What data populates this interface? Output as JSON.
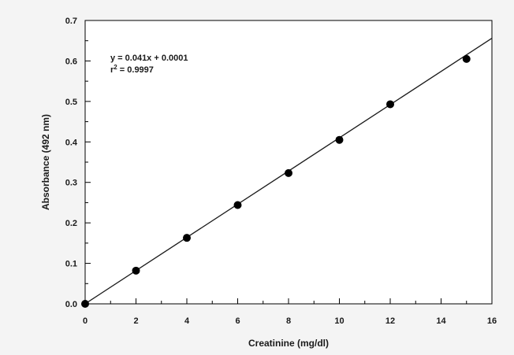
{
  "chart_data": {
    "type": "scatter",
    "title": "",
    "xlabel": "Creatinine (mg/dl)",
    "ylabel": "Absorbance (492 nm)",
    "xlim": [
      0,
      16
    ],
    "ylim": [
      0,
      0.7
    ],
    "x_ticks": [
      "0",
      "2",
      "4",
      "6",
      "8",
      "10",
      "12",
      "14",
      "16"
    ],
    "y_ticks": [
      "0.0",
      "0.1",
      "0.2",
      "0.3",
      "0.4",
      "0.5",
      "0.6",
      "0.7"
    ],
    "series": [
      {
        "points": [
          {
            "x": 0,
            "y": 0.0
          },
          {
            "x": 2,
            "y": 0.082
          },
          {
            "x": 4,
            "y": 0.163
          },
          {
            "x": 6,
            "y": 0.244
          },
          {
            "x": 8,
            "y": 0.323
          },
          {
            "x": 10,
            "y": 0.405
          },
          {
            "x": 12,
            "y": 0.493
          },
          {
            "x": 15,
            "y": 0.605
          }
        ]
      }
    ],
    "fit": {
      "slope": 0.041,
      "intercept": 0.0001,
      "x_range": [
        0,
        16
      ]
    },
    "annotation": {
      "equation": "y = 0.041x + 0.0001",
      "r_symbol": "r",
      "r_exponent": "2",
      "r_value": " = 0.9997"
    },
    "grid": false,
    "marker_color": "#000000",
    "line_color": "#1a1a1a"
  }
}
